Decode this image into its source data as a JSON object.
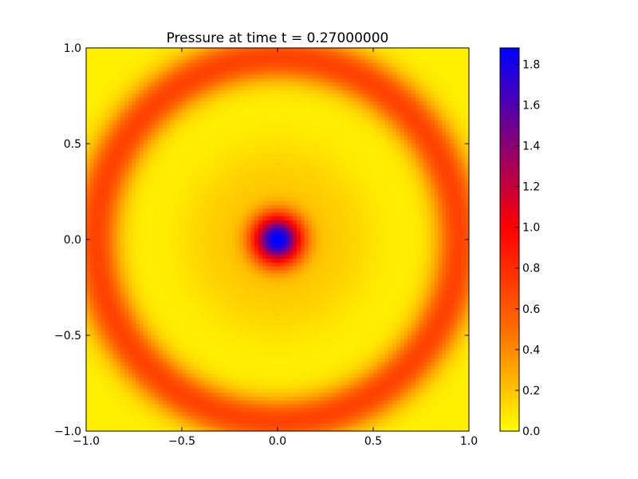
{
  "chart_data": {
    "type": "heatmap",
    "title": "Pressure at time t =      0.27000000",
    "xlabel": "",
    "ylabel": "",
    "xlim": [
      -1.0,
      1.0
    ],
    "ylim": [
      -1.0,
      1.0
    ],
    "grid_cells": [
      100,
      100
    ],
    "xticks": [
      "−1.0",
      "−0.5",
      "0.0",
      "0.5",
      "1.0"
    ],
    "xtick_values": [
      -1.0,
      -0.5,
      0.0,
      0.5,
      1.0
    ],
    "yticks": [
      "−1.0",
      "−0.5",
      "0.0",
      "0.5",
      "1.0"
    ],
    "ytick_values": [
      -1.0,
      -0.5,
      0.0,
      0.5,
      1.0
    ],
    "colorbar": {
      "range": [
        0.0,
        1.88
      ],
      "ticks": [
        "0.0",
        "0.2",
        "0.4",
        "0.6",
        "0.8",
        "1.0",
        "1.2",
        "1.4",
        "1.6",
        "1.8"
      ],
      "tick_values": [
        0,
        0.2,
        0.4,
        0.6,
        0.8,
        1.0,
        1.2,
        1.4,
        1.6,
        1.8
      ],
      "colormap": [
        [
          0,
          "#ffff00"
        ],
        [
          0.5,
          "#ff6e00"
        ],
        [
          1.0,
          "#ff0000"
        ],
        [
          1.88,
          "#0000ff"
        ]
      ]
    },
    "field": {
      "center_peak": {
        "value": 1.88,
        "sigma": 0.09
      },
      "ring": {
        "radius": 0.95,
        "value": 0.65,
        "sigma": 0.085
      },
      "inner_halo": {
        "radius": 0.3,
        "value": 0.12,
        "sigma": 0.15
      },
      "background": 0.05
    }
  }
}
